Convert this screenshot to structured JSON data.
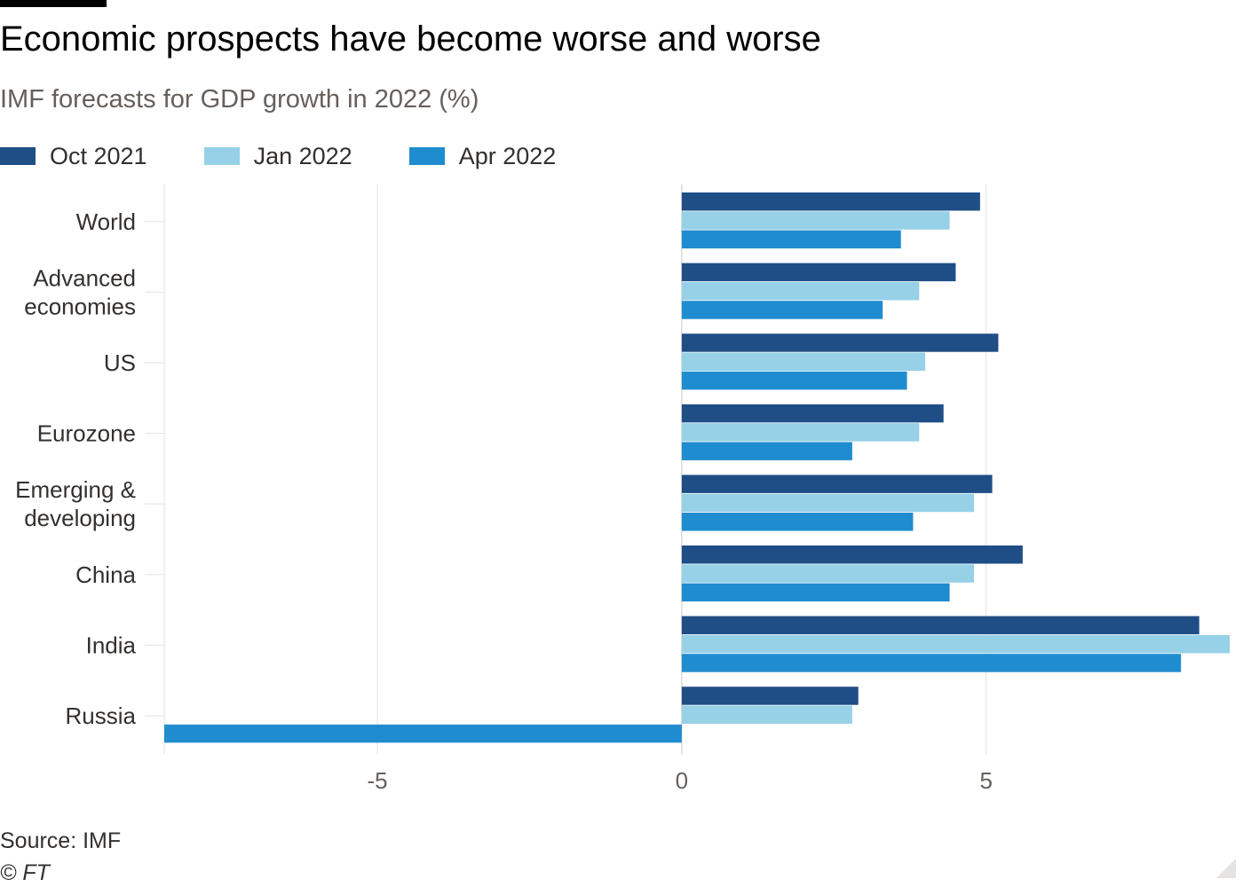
{
  "title": "Economic prospects have become worse and worse",
  "subtitle": "IMF forecasts for GDP growth in 2022 (%)",
  "source": "Source: IMF",
  "copyright": "© FT",
  "colors": {
    "oct2021": "#1f4e87",
    "jan2022": "#96d1e8",
    "apr2022": "#1f8ccf",
    "grid": "#e6e2df",
    "axis_text": "#66605c"
  },
  "legend": [
    {
      "label": "Oct 2021",
      "color": "#1f4e87"
    },
    {
      "label": "Jan 2022",
      "color": "#96d1e8"
    },
    {
      "label": "Apr 2022",
      "color": "#1f8ccf"
    }
  ],
  "chart_data": {
    "type": "bar",
    "orientation": "horizontal",
    "title": "Economic prospects have become worse and worse",
    "subtitle": "IMF forecasts for GDP growth in 2022 (%)",
    "categories": [
      [
        "World"
      ],
      [
        "Advanced",
        "economies"
      ],
      [
        "US"
      ],
      [
        "Eurozone"
      ],
      [
        "Emerging &",
        "developing"
      ],
      [
        "China"
      ],
      [
        "India"
      ],
      [
        "Russia"
      ]
    ],
    "series": [
      {
        "name": "Oct 2021",
        "color": "#1f4e87",
        "values": [
          4.9,
          4.5,
          5.2,
          4.3,
          5.1,
          5.6,
          8.5,
          2.9
        ]
      },
      {
        "name": "Jan 2022",
        "color": "#96d1e8",
        "values": [
          4.4,
          3.9,
          4.0,
          3.9,
          4.8,
          4.8,
          9.0,
          2.8
        ]
      },
      {
        "name": "Apr 2022",
        "color": "#1f8ccf",
        "values": [
          3.6,
          3.3,
          3.7,
          2.8,
          3.8,
          4.4,
          8.2,
          -8.5
        ]
      }
    ],
    "xlim": [
      -8.5,
      9.0
    ],
    "xticks": [
      -5,
      0,
      5
    ],
    "xtick_labels": [
      "-5",
      "0",
      "5"
    ],
    "grid": true,
    "legend_position": "top-left"
  }
}
